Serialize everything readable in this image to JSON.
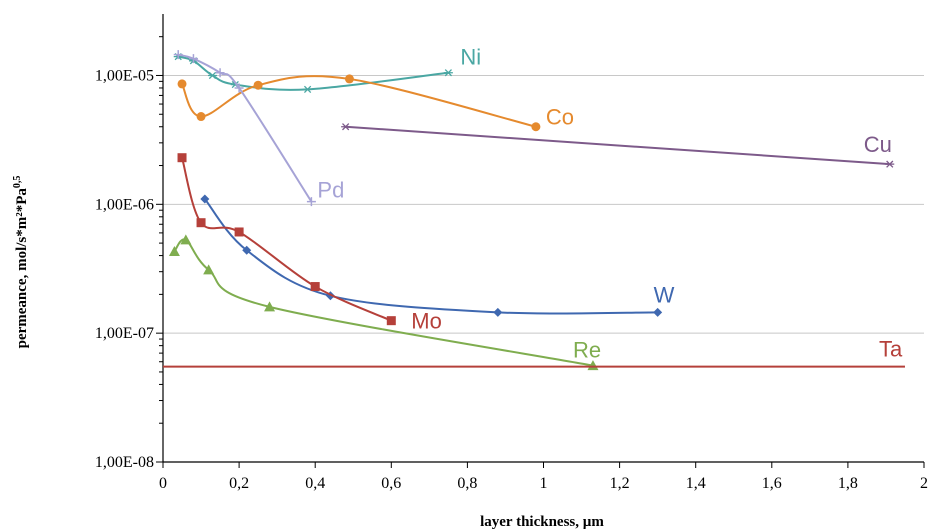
{
  "chart_data": {
    "type": "scatter",
    "title": "",
    "xlabel": "layer thickness, µm",
    "ylabel": "permeance, mol/s*m²*Pa",
    "ylabel_superscript": "0,5",
    "xlim": [
      0,
      2
    ],
    "ylim": [
      1e-08,
      3e-05
    ],
    "yscale": "log",
    "x_ticks": [
      "0",
      "0,2",
      "0,4",
      "0,6",
      "0,8",
      "1",
      "1,2",
      "1,4",
      "1,6",
      "1,8",
      "2"
    ],
    "x_tick_values": [
      0,
      0.2,
      0.4,
      0.6,
      0.8,
      1.0,
      1.2,
      1.4,
      1.6,
      1.8,
      2.0
    ],
    "y_ticks": [
      "1,00E-08",
      "1,00E-07",
      "1,00E-06",
      "1,00E-05"
    ],
    "y_tick_values": [
      1e-08,
      1e-07,
      1e-06,
      1e-05
    ],
    "grid": "horizontal",
    "series": [
      {
        "name": "Ni",
        "color": "#4aa7a3",
        "marker": "star",
        "x": [
          0.04,
          0.08,
          0.13,
          0.19,
          0.38,
          0.75
        ],
        "y": [
          1.4e-05,
          1.3e-05,
          1e-05,
          8.5e-06,
          7.8e-06,
          1.05e-05
        ]
      },
      {
        "name": "Co",
        "color": "#e58a2e",
        "marker": "circle",
        "x": [
          0.05,
          0.1,
          0.25,
          0.49,
          0.98
        ],
        "y": [
          8.6e-06,
          4.8e-06,
          8.4e-06,
          9.4e-06,
          4e-06
        ]
      },
      {
        "name": "Pd",
        "color": "#a6a3d6",
        "marker": "plus",
        "x": [
          0.04,
          0.08,
          0.15,
          0.2,
          0.39
        ],
        "y": [
          1.45e-05,
          1.35e-05,
          1.05e-05,
          8e-06,
          1.05e-06
        ]
      },
      {
        "name": "Cu",
        "color": "#7d5a8a",
        "marker": "star",
        "x": [
          0.48,
          1.91
        ],
        "y": [
          4e-06,
          2.05e-06
        ]
      },
      {
        "name": "W",
        "color": "#3f68b0",
        "marker": "diamond",
        "x": [
          0.11,
          0.22,
          0.44,
          0.88,
          1.3
        ],
        "y": [
          1.1e-06,
          4.4e-07,
          1.95e-07,
          1.45e-07,
          1.45e-07
        ]
      },
      {
        "name": "Mo",
        "color": "#b5403a",
        "marker": "square",
        "x": [
          0.05,
          0.1,
          0.2,
          0.4,
          0.6
        ],
        "y": [
          2.3e-06,
          7.2e-07,
          6.1e-07,
          2.3e-07,
          1.25e-07
        ]
      },
      {
        "name": "Re",
        "color": "#7fad4f",
        "marker": "triangle",
        "x": [
          0.03,
          0.06,
          0.12,
          0.28,
          1.13
        ],
        "y": [
          4.3e-07,
          5.3e-07,
          3.1e-07,
          1.6e-07,
          5.6e-08
        ]
      },
      {
        "name": "Ta",
        "color": "#b5403a",
        "marker": "none",
        "x": [
          0.0,
          1.95
        ],
        "y": [
          5.5e-08,
          5.5e-08
        ]
      }
    ]
  }
}
